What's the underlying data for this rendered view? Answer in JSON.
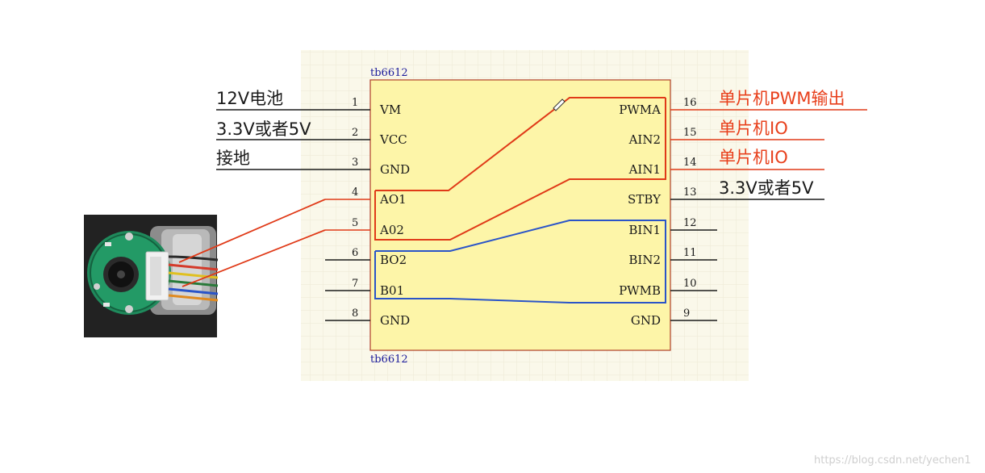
{
  "chip": {
    "label_top": "tb6612",
    "label_bottom": "tb6612"
  },
  "left_pins": [
    {
      "num": "1",
      "name": "VM"
    },
    {
      "num": "2",
      "name": "VCC"
    },
    {
      "num": "3",
      "name": "GND"
    },
    {
      "num": "4",
      "name": "AO1"
    },
    {
      "num": "5",
      "name": "A02"
    },
    {
      "num": "6",
      "name": "BO2"
    },
    {
      "num": "7",
      "name": "B01"
    },
    {
      "num": "8",
      "name": "GND"
    }
  ],
  "right_pins": [
    {
      "num": "16",
      "name": "PWMA"
    },
    {
      "num": "15",
      "name": "AIN2"
    },
    {
      "num": "14",
      "name": "AIN1"
    },
    {
      "num": "13",
      "name": "STBY"
    },
    {
      "num": "12",
      "name": "BIN1"
    },
    {
      "num": "11",
      "name": "BIN2"
    },
    {
      "num": "10",
      "name": "PWMB"
    },
    {
      "num": "9",
      "name": "GND"
    }
  ],
  "left_annotations": [
    "12V电池",
    "3.3V或者5V",
    "接地"
  ],
  "right_annotations": [
    "单片机PWM输出",
    "单片机IO",
    "单片机IO",
    "3.3V或者5V"
  ],
  "watermark": "https://blog.csdn.net/yechen1",
  "colors": {
    "chip_fill": "#fdf5a8",
    "chip_border": "#b0402a",
    "grid_bg": "#faf8ea",
    "red_wire": "#e03a18",
    "blue_wire": "#2a54c8",
    "pin_line": "#1a1a1a"
  },
  "motor_image": {
    "icon": "encoder-motor-icon"
  }
}
